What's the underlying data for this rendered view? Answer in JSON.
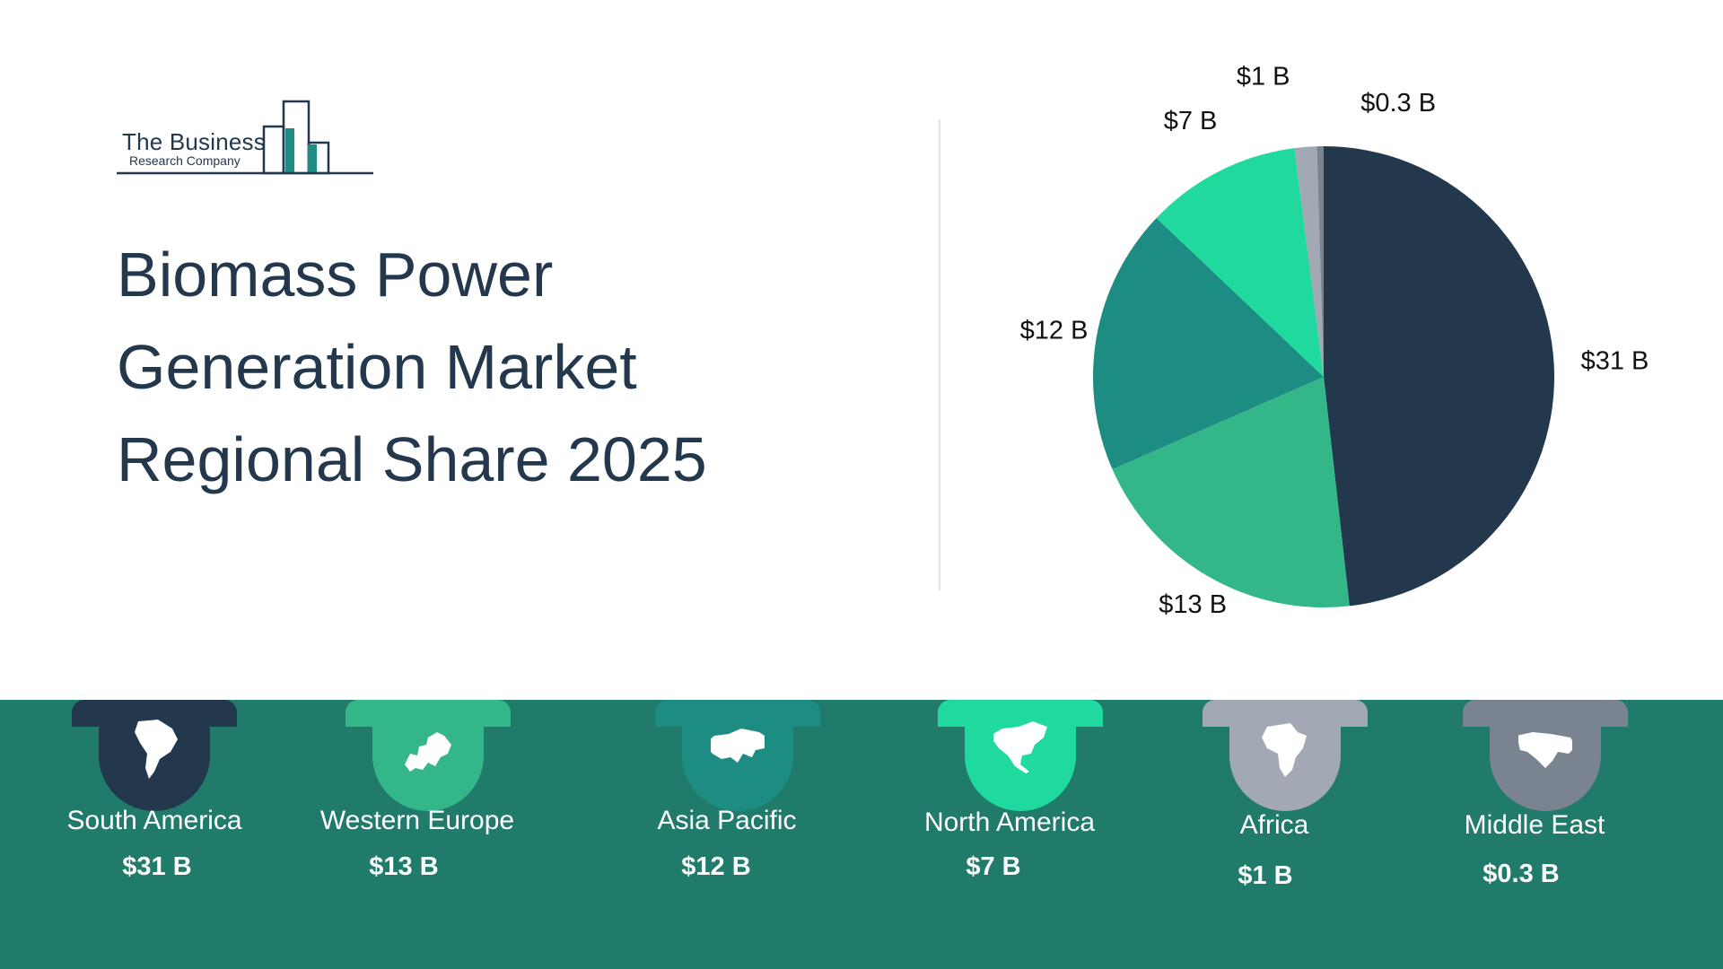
{
  "logo": {
    "name": "The Business",
    "sub": "Research Company"
  },
  "title_lines": [
    "Biomass Power",
    "Generation Market",
    "Regional Share 2025"
  ],
  "colors": {
    "band": "#217b6b",
    "title": "#23374d"
  },
  "chart_data": {
    "type": "pie",
    "title": "Biomass Power Generation Market Regional Share 2025",
    "unit": "$ B",
    "slices": [
      {
        "label": "South America",
        "value": 31,
        "display": "$31 B",
        "color": "#23374d"
      },
      {
        "label": "Western Europe",
        "value": 13,
        "display": "$13 B",
        "color": "#34b788"
      },
      {
        "label": "Asia Pacific",
        "value": 12,
        "display": "$12 B",
        "color": "#1d8c83"
      },
      {
        "label": "North America",
        "value": 7,
        "display": "$7 B",
        "color": "#20d99f"
      },
      {
        "label": "Africa",
        "value": 1,
        "display": "$1 B",
        "color": "#a3a9b4"
      },
      {
        "label": "Middle East",
        "value": 0.3,
        "display": "$0.3 B",
        "color": "#7a8491"
      }
    ]
  },
  "regions": [
    {
      "name": "South America",
      "value": "$31 B",
      "color": "#23374d",
      "icon": "south-america-map-icon"
    },
    {
      "name": "Western Europe",
      "value": "$13 B",
      "color": "#34b788",
      "icon": "europe-map-icon"
    },
    {
      "name": "Asia Pacific",
      "value": "$12 B",
      "color": "#1d8c83",
      "icon": "asia-map-icon"
    },
    {
      "name": "North America",
      "value": "$7 B",
      "color": "#20d99f",
      "icon": "north-america-map-icon"
    },
    {
      "name": "Africa",
      "value": "$1 B",
      "color": "#a3a9b4",
      "icon": "africa-map-icon"
    },
    {
      "name": "Middle East",
      "value": "$0.3 B",
      "color": "#7a8491",
      "icon": "middle-east-map-icon"
    }
  ]
}
